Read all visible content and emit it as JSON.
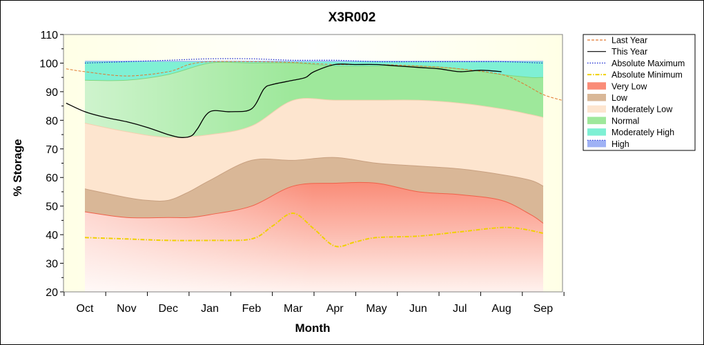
{
  "chart_data": {
    "type": "area",
    "title": "X3R002",
    "xlabel": "Month",
    "ylabel": "% Storage",
    "ylim": [
      20,
      110
    ],
    "yticks": [
      20,
      30,
      40,
      50,
      60,
      70,
      80,
      90,
      100,
      110
    ],
    "x_ticks": [
      "Oct",
      "Nov",
      "Dec",
      "Jan",
      "Feb",
      "Mar",
      "Apr",
      "May",
      "Jun",
      "Jul",
      "Aug",
      "Sep"
    ],
    "legend_position": "right",
    "bands": [
      {
        "name": "Very Low",
        "color": "#fa8c78",
        "x": [
          0,
          1,
          2,
          2.5,
          3,
          4,
          5,
          6,
          7,
          8,
          9,
          10,
          10.7,
          11
        ],
        "y": [
          48,
          46,
          46,
          46,
          47,
          50,
          57,
          58,
          58,
          55,
          54,
          52,
          47,
          44
        ]
      },
      {
        "name": "Low",
        "color": "#d9b797",
        "x": [
          0,
          1,
          1.5,
          2,
          2.5,
          3,
          4,
          5,
          6,
          7,
          8,
          9,
          10,
          10.7,
          11
        ],
        "y": [
          56,
          53,
          52,
          52,
          55,
          59,
          66,
          66,
          67,
          65,
          64,
          63,
          61,
          59,
          57
        ]
      },
      {
        "name": "Moderately Low",
        "color": "#fde5cf",
        "x": [
          0,
          1,
          2,
          3,
          4,
          5,
          6,
          7,
          8,
          9,
          10,
          10.7,
          11
        ],
        "y": [
          79,
          76,
          74,
          75,
          78,
          87,
          87,
          87,
          87,
          86,
          84,
          82,
          81
        ]
      },
      {
        "name": "Normal",
        "color": "#9ee89b",
        "x": [
          0,
          1,
          2,
          3,
          4,
          5,
          6,
          7,
          8,
          9,
          10,
          10.7,
          11
        ],
        "y": [
          94,
          94,
          96,
          100,
          100,
          100,
          99,
          99,
          99,
          98,
          96,
          95,
          95
        ]
      },
      {
        "name": "Moderately High",
        "color": "#7ff0d4",
        "x": [
          0,
          11
        ],
        "y": [
          100.5,
          100.5
        ]
      },
      {
        "name": "High",
        "color": "#9fb2f5",
        "x": [
          0,
          11
        ],
        "y": [
          100.8,
          100.8
        ]
      }
    ],
    "series": [
      {
        "name": "Last Year",
        "color": "#e07830",
        "style": "dashed",
        "x": [
          -0.45,
          0,
          1,
          2,
          2.5,
          3,
          4,
          5,
          6,
          7,
          8,
          9,
          10,
          10.5,
          11,
          11.45
        ],
        "y": [
          98,
          97,
          95.5,
          97,
          99.5,
          100.5,
          100.5,
          100.2,
          99.5,
          99.5,
          99,
          98,
          96,
          93,
          89,
          87
        ]
      },
      {
        "name": "This Year",
        "color": "#000000",
        "style": "solid",
        "x": [
          -0.45,
          0,
          0.5,
          1,
          1.5,
          2,
          2.3,
          2.55,
          2.7,
          3,
          3.5,
          4,
          4.3,
          4.5,
          5,
          5.3,
          5.5,
          6,
          6.5,
          7,
          7.5,
          8,
          8.5,
          9,
          9.5,
          10
        ],
        "y": [
          86,
          83,
          81,
          79.5,
          77.5,
          75,
          74,
          74.5,
          77,
          83,
          83,
          84,
          91,
          92.5,
          94,
          95,
          97,
          99.5,
          99.5,
          99.5,
          99,
          98.5,
          98,
          97,
          97.5,
          97
        ]
      },
      {
        "name": "Absolute Maximum",
        "color": "#1020d0",
        "style": "dotted",
        "x": [
          0,
          1,
          2,
          3,
          4,
          5,
          6,
          7,
          8,
          9,
          10,
          11
        ],
        "y": [
          100,
          100.5,
          101,
          101.5,
          101.5,
          101,
          101,
          100.5,
          100.5,
          100.5,
          100.5,
          100
        ]
      },
      {
        "name": "Absolute Minimum",
        "color": "#f0d000",
        "style": "dashdot",
        "x": [
          0,
          1,
          2,
          3,
          4,
          4.5,
          5,
          5.5,
          6,
          6.5,
          7,
          8,
          9,
          10,
          10.5,
          11
        ],
        "y": [
          39,
          38.5,
          38,
          38,
          38.5,
          43,
          47.5,
          42,
          36,
          37.5,
          39,
          39.5,
          41,
          42.5,
          42,
          40.5
        ]
      }
    ],
    "legend": [
      "Last Year",
      "This Year",
      "Absolute Maximum",
      "Absolute Minimum",
      "Very Low",
      "Low",
      "Moderately Low",
      "Normal",
      "Moderately High",
      "High"
    ]
  }
}
